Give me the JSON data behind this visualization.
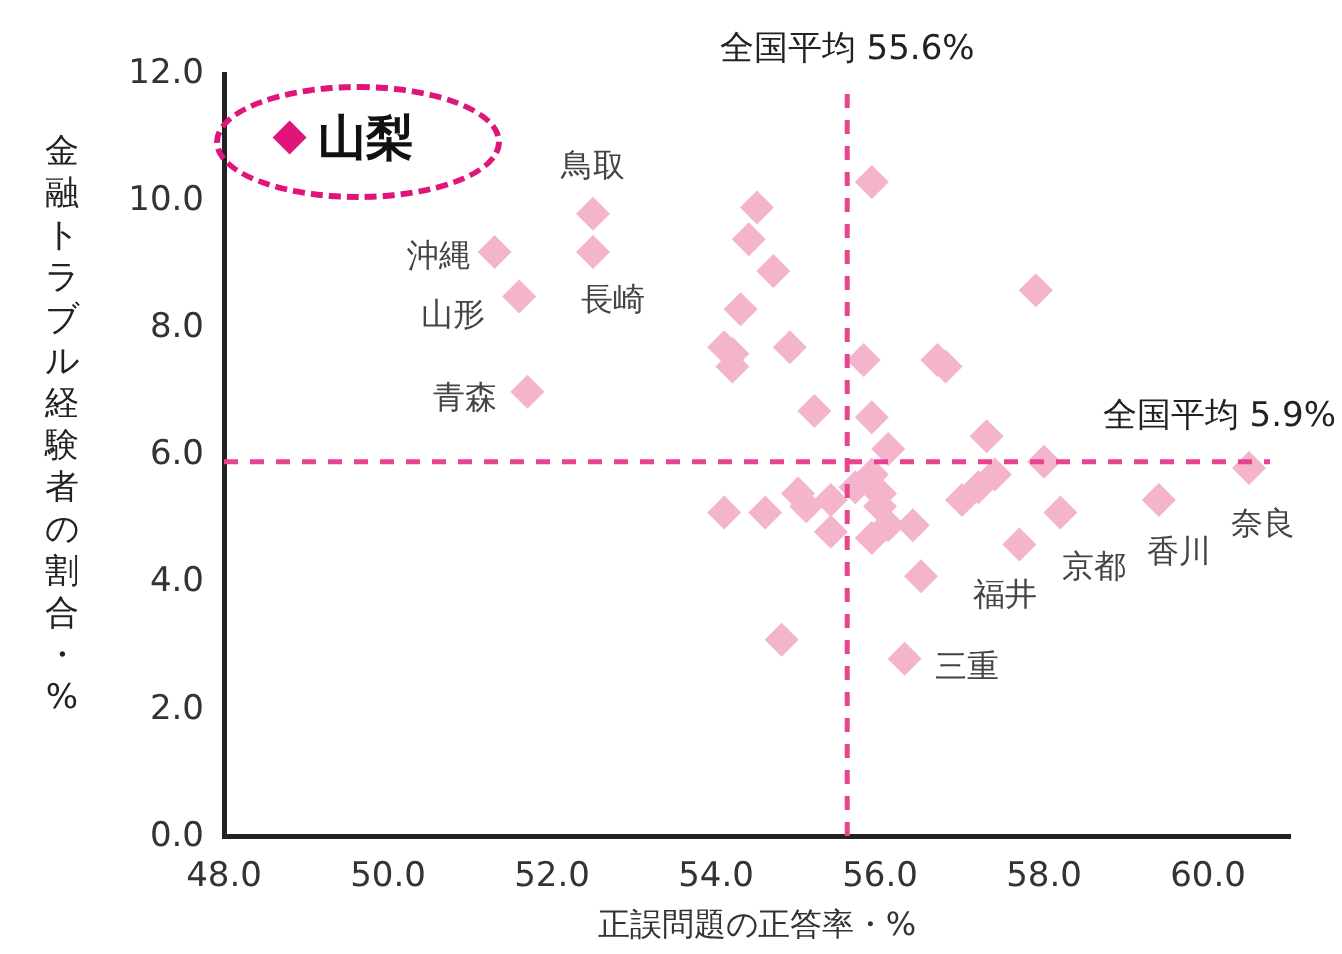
{
  "chart_data": {
    "type": "scatter",
    "xlabel": "正誤問題の正答率・%",
    "ylabel": "金融トラブル経験者の割合・%",
    "marker": "diamond",
    "xlim": [
      48,
      61
    ],
    "ylim": [
      0,
      12
    ],
    "xticks": [
      {
        "value": 48,
        "label": "48.0"
      },
      {
        "value": 50,
        "label": "50.0"
      },
      {
        "value": 52,
        "label": "52.0"
      },
      {
        "value": 54,
        "label": "54.0"
      },
      {
        "value": 56,
        "label": "56.0"
      },
      {
        "value": 58,
        "label": "58.0"
      },
      {
        "value": 60,
        "label": "60.0"
      }
    ],
    "yticks": [
      {
        "value": 0,
        "label": "0.0"
      },
      {
        "value": 2,
        "label": "2.0"
      },
      {
        "value": 4,
        "label": "4.0"
      },
      {
        "value": 6,
        "label": "6.0"
      },
      {
        "value": 8,
        "label": "8.0"
      },
      {
        "value": 10,
        "label": "10.0"
      },
      {
        "value": 12,
        "label": "12.0"
      }
    ],
    "series": [
      {
        "color": "#f4b4cc",
        "x": [
          52.5,
          52.5,
          51.3,
          51.6,
          51.7,
          60.5,
          59.4,
          58.2,
          57.7,
          56.3,
          54.5,
          54.4,
          54.7,
          54.3,
          54.1,
          54.2,
          54.2,
          54.9,
          55.9,
          57.9,
          55.8,
          56.7,
          56.8,
          55.2,
          55.9,
          56.1,
          57.3,
          58.0,
          57.4,
          57.2,
          57.0,
          55.0,
          55.1,
          55.4,
          55.4,
          55.7,
          55.9,
          56.0,
          56.0,
          55.9,
          56.1,
          56.4,
          56.5,
          54.8,
          54.1,
          54.6
        ],
        "values": [
          9.8,
          9.2,
          9.2,
          8.5,
          7.0,
          5.8,
          5.3,
          5.1,
          4.6,
          2.8,
          9.9,
          9.4,
          8.9,
          8.3,
          7.7,
          7.6,
          7.4,
          7.7,
          10.3,
          8.6,
          7.5,
          7.5,
          7.4,
          6.7,
          6.6,
          6.1,
          6.3,
          5.9,
          5.7,
          5.5,
          5.3,
          5.4,
          5.2,
          5.3,
          4.8,
          5.5,
          5.7,
          5.4,
          5.2,
          4.7,
          4.9,
          4.9,
          4.1,
          3.1,
          5.1,
          5.1
        ]
      },
      {
        "color": "#e0157a",
        "x": [
          48.8
        ],
        "values": [
          11.0
        ]
      }
    ],
    "ref_lines": [
      {
        "axis": "x",
        "value": 55.6,
        "label": "全国平均 55.6%",
        "color": "#e8438f",
        "line_style": "dashed"
      },
      {
        "axis": "y",
        "value": 5.9,
        "label": "全国平均 5.9%",
        "color": "#e8438f",
        "line_style": "dashed"
      }
    ],
    "annotations": [
      {
        "text": "鳥取",
        "x": 52.5,
        "y": 9.8
      },
      {
        "text": "長崎",
        "x": 52.5,
        "y": 9.2
      },
      {
        "text": "沖縄",
        "x": 51.3,
        "y": 9.2
      },
      {
        "text": "山形",
        "x": 51.6,
        "y": 8.5
      },
      {
        "text": "青森",
        "x": 51.7,
        "y": 7.0
      },
      {
        "text": "奈良",
        "x": 60.5,
        "y": 5.8
      },
      {
        "text": "香川",
        "x": 59.4,
        "y": 5.3
      },
      {
        "text": "京都",
        "x": 58.2,
        "y": 5.1
      },
      {
        "text": "福井",
        "x": 57.7,
        "y": 4.6
      },
      {
        "text": "三重",
        "x": 56.3,
        "y": 2.8
      },
      {
        "text": "山梨",
        "x": 48.8,
        "y": 11.0
      }
    ]
  }
}
